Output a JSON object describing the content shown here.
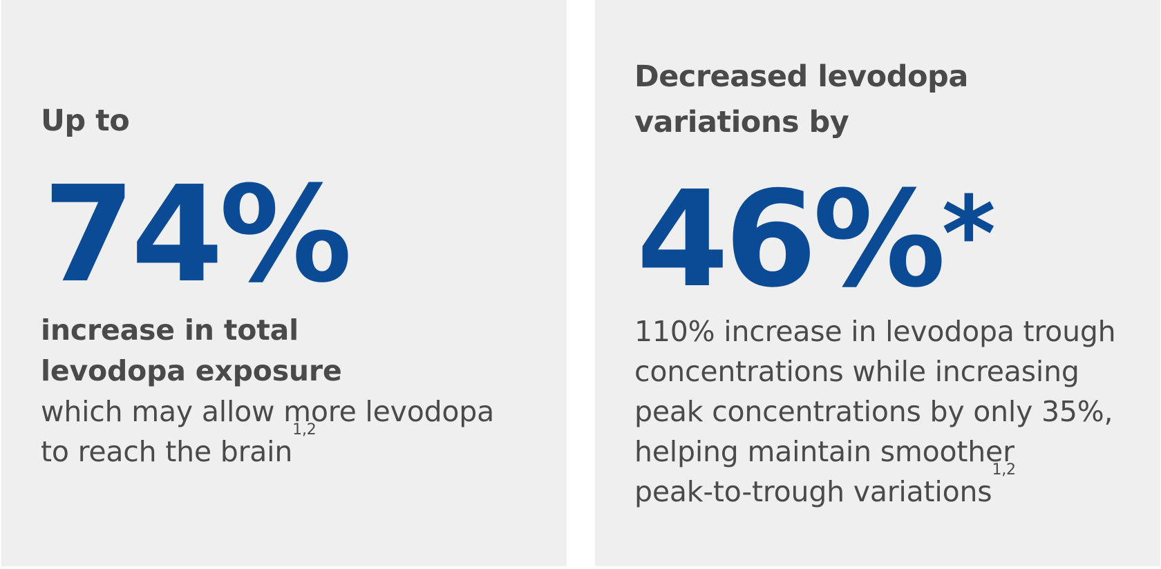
{
  "left_card": {
    "lead": "Up to",
    "stat": "74%",
    "headline_line1": "increase in total",
    "headline_line2": "levodopa exposure",
    "body_line1": "which may allow more levodopa",
    "body_line2": "to reach the brain",
    "citation": "1,2"
  },
  "right_card": {
    "lead_line1": "Decreased levodopa",
    "lead_line2": "variations by",
    "stat": "46%",
    "stat_mark": "*",
    "body_line1": "110% increase in levodopa trough",
    "body_line2": "concentrations while increasing",
    "body_line3": "peak concentrations by only 35%,",
    "body_line4": "helping maintain smoother",
    "body_line5": "peak-to-trough variations",
    "citation": "1,2"
  },
  "colors": {
    "accent": "#0b4a94",
    "text": "#4a4a4a",
    "card_background": "#efefef"
  }
}
